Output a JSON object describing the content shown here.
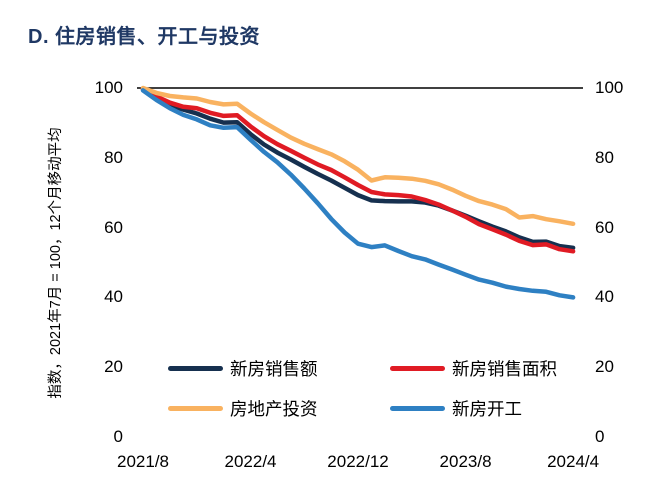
{
  "title": "D. 住房销售、开工与投资",
  "title_color": "#1f3864",
  "chart_data": {
    "type": "line",
    "title": "D. 住房销售、开工与投资",
    "y_axis_title": "指数，2021年7月 = 100，12个月移动平均",
    "x": [
      "2021/8",
      "2021/9",
      "2021/10",
      "2021/11",
      "2021/12",
      "2022/1",
      "2022/2",
      "2022/3",
      "2022/4",
      "2022/5",
      "2022/6",
      "2022/7",
      "2022/8",
      "2022/9",
      "2022/10",
      "2022/11",
      "2022/12",
      "2023/1",
      "2023/2",
      "2023/3",
      "2023/4",
      "2023/5",
      "2023/6",
      "2023/7",
      "2023/8",
      "2023/9",
      "2023/10",
      "2023/11",
      "2023/12",
      "2024/1",
      "2024/2",
      "2024/3",
      "2024/4"
    ],
    "x_tick_labels": [
      "2021/8",
      "2022/4",
      "2022/12",
      "2023/8",
      "2024/4"
    ],
    "x_tick_month_indices": [
      0,
      8,
      16,
      24,
      32
    ],
    "y_ticks": [
      0,
      20,
      40,
      60,
      80,
      100
    ],
    "ylim": [
      0,
      100
    ],
    "reference_line_value": 100,
    "grid": false,
    "legend_position": "bottom",
    "series": [
      {
        "name": "新房销售额",
        "color": "#16304f",
        "values": [
          99.7,
          97.2,
          95.2,
          93.8,
          92.7,
          91.2,
          90.1,
          90.2,
          86.8,
          83.8,
          81.5,
          79.5,
          77.4,
          75.4,
          73.5,
          71.4,
          69.3,
          67.8,
          67.6,
          67.5,
          67.5,
          67.2,
          66.3,
          64.9,
          63.4,
          61.8,
          60.3,
          58.9,
          57.2,
          55.9,
          56.0,
          54.7,
          54.2
        ]
      },
      {
        "name": "新房销售面积",
        "color": "#e01b24",
        "values": [
          99.7,
          97.6,
          95.8,
          94.6,
          94.2,
          92.9,
          92.0,
          92.2,
          89.0,
          86.2,
          83.9,
          82.0,
          80.0,
          78.1,
          76.5,
          74.4,
          72.2,
          70.2,
          69.5,
          69.3,
          68.9,
          67.9,
          66.6,
          64.9,
          63.1,
          61.0,
          59.5,
          58.0,
          56.2,
          55.0,
          55.2,
          53.8,
          53.2
        ]
      },
      {
        "name": "房地产投资",
        "color": "#f9b260",
        "values": [
          100.0,
          98.6,
          97.7,
          97.3,
          97.0,
          96.0,
          95.3,
          95.5,
          92.7,
          90.2,
          88.0,
          85.8,
          84.0,
          82.5,
          81.0,
          79.0,
          76.6,
          73.5,
          74.4,
          74.3,
          74.0,
          73.4,
          72.4,
          70.9,
          69.1,
          67.6,
          66.6,
          65.3,
          62.9,
          63.3,
          62.4,
          61.8,
          61.1
        ]
      },
      {
        "name": "新房开工",
        "color": "#2e80c3",
        "values": [
          99.3,
          96.6,
          94.2,
          92.3,
          91.0,
          89.3,
          88.6,
          88.8,
          85.2,
          81.7,
          78.7,
          75.2,
          71.2,
          67.0,
          62.5,
          58.6,
          55.4,
          54.4,
          54.9,
          53.3,
          51.8,
          50.9,
          49.4,
          48.0,
          46.5,
          45.1,
          44.2,
          43.1,
          42.4,
          41.9,
          41.6,
          40.6,
          40.0
        ]
      }
    ]
  }
}
